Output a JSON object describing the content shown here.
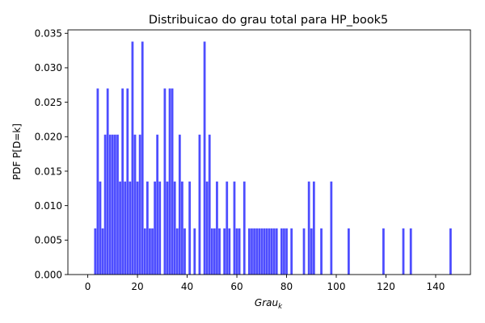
{
  "chart_data": {
    "type": "bar",
    "title": "Distribuicao do grau total para HP_book5",
    "xlabel": {
      "base": "Grau",
      "subscript": "k"
    },
    "ylabel": "PDF P[D=k]",
    "xlim": [
      -8,
      154
    ],
    "ylim": [
      0,
      0.0355
    ],
    "xticks": [
      0,
      20,
      40,
      60,
      80,
      100,
      120,
      140
    ],
    "xtick_labels": [
      "0",
      "20",
      "40",
      "60",
      "80",
      "100",
      "120",
      "140"
    ],
    "yticks": [
      0,
      0.005,
      0.01,
      0.015,
      0.02,
      0.025,
      0.03,
      0.035
    ],
    "ytick_labels": [
      "0.000",
      "0.005",
      "0.010",
      "0.015",
      "0.020",
      "0.025",
      "0.030",
      "0.035"
    ],
    "grid": false,
    "bar_color": "#4d4dff",
    "x": [
      3,
      4,
      5,
      6,
      7,
      8,
      9,
      10,
      11,
      12,
      13,
      14,
      15,
      16,
      17,
      18,
      19,
      20,
      21,
      22,
      23,
      24,
      25,
      26,
      27,
      28,
      29,
      31,
      32,
      33,
      34,
      35,
      36,
      37,
      38,
      39,
      41,
      43,
      45,
      47,
      48,
      49,
      50,
      51,
      52,
      53,
      55,
      56,
      57,
      59,
      60,
      61,
      63,
      65,
      66,
      67,
      68,
      69,
      70,
      71,
      72,
      73,
      74,
      75,
      76,
      78,
      79,
      80,
      82,
      87,
      89,
      90,
      91,
      94,
      98,
      105,
      119,
      127,
      130,
      146
    ],
    "values": [
      0.0067,
      0.027,
      0.0135,
      0.0067,
      0.0203,
      0.027,
      0.0203,
      0.0203,
      0.0203,
      0.0203,
      0.0135,
      0.027,
      0.0135,
      0.027,
      0.0135,
      0.0338,
      0.0203,
      0.0135,
      0.0203,
      0.0338,
      0.0067,
      0.0135,
      0.0067,
      0.0067,
      0.0135,
      0.0203,
      0.0135,
      0.027,
      0.0135,
      0.027,
      0.027,
      0.0135,
      0.0067,
      0.0203,
      0.0135,
      0.0067,
      0.0135,
      0.0067,
      0.0203,
      0.0338,
      0.0135,
      0.0203,
      0.0067,
      0.0067,
      0.0135,
      0.0067,
      0.0067,
      0.0135,
      0.0067,
      0.0135,
      0.0067,
      0.0067,
      0.0135,
      0.0067,
      0.0067,
      0.0067,
      0.0067,
      0.0067,
      0.0067,
      0.0067,
      0.0067,
      0.0067,
      0.0067,
      0.0067,
      0.0067,
      0.0067,
      0.0067,
      0.0067,
      0.0067,
      0.0067,
      0.0135,
      0.0067,
      0.0135,
      0.0067,
      0.0135,
      0.0067,
      0.0067,
      0.0067,
      0.0067,
      0.0067
    ]
  }
}
